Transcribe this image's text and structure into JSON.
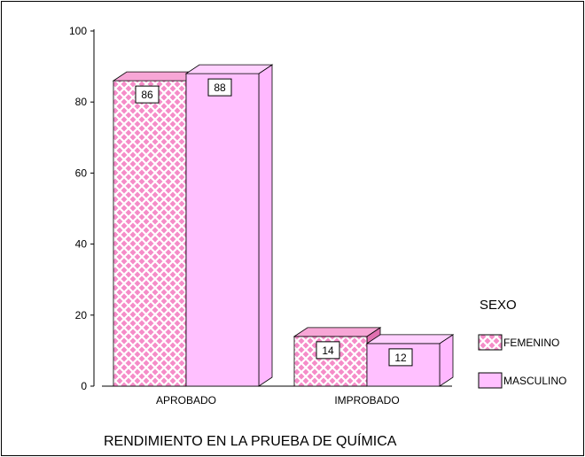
{
  "chart_data": {
    "type": "bar",
    "categories": [
      "APROBADO",
      "IMPROBADO"
    ],
    "series": [
      {
        "name": "FEMENINO",
        "values": [
          86,
          14
        ],
        "color": "#f080c0",
        "pattern": "crosshatch"
      },
      {
        "name": "MASCULINO",
        "values": [
          88,
          12
        ],
        "color": "#ffc0ff",
        "pattern": "solid"
      }
    ],
    "xlabel": "RENDIMIENTO EN LA PRUEBA DE QUÍMICA",
    "ylabel": "",
    "ylim": [
      0,
      100
    ],
    "yticks": [
      "0",
      "20",
      "40",
      "60",
      "80",
      "100"
    ],
    "legend": {
      "title": "SEXO",
      "position": "right"
    },
    "data_labels": [
      "86",
      "88",
      "14",
      "12"
    ]
  }
}
